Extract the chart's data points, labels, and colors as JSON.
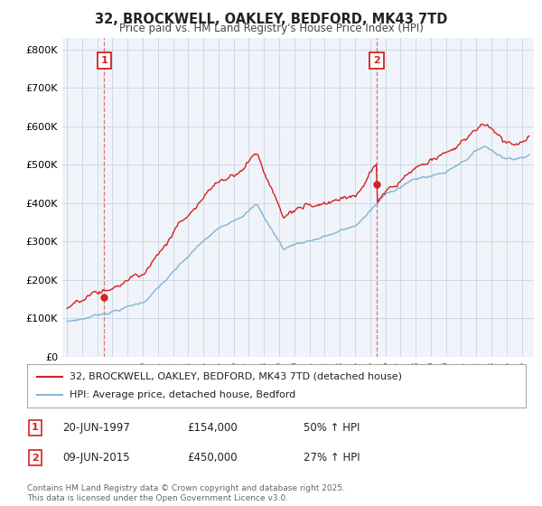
{
  "title": "32, BROCKWELL, OAKLEY, BEDFORD, MK43 7TD",
  "subtitle": "Price paid vs. HM Land Registry's House Price Index (HPI)",
  "legend_line1": "32, BROCKWELL, OAKLEY, BEDFORD, MK43 7TD (detached house)",
  "legend_line2": "HPI: Average price, detached house, Bedford",
  "annotation1_label": "1",
  "annotation1_date": "20-JUN-1997",
  "annotation1_price": "£154,000",
  "annotation1_hpi": "50% ↑ HPI",
  "annotation1_year": 1997.47,
  "annotation1_value": 154000,
  "annotation2_label": "2",
  "annotation2_date": "09-JUN-2015",
  "annotation2_price": "£450,000",
  "annotation2_hpi": "27% ↑ HPI",
  "annotation2_year": 2015.44,
  "annotation2_value": 450000,
  "red_color": "#d42020",
  "blue_color": "#88b8d8",
  "background_color": "#f0f4fa",
  "grid_color": "#c8d4e0",
  "ylim": [
    0,
    830000
  ],
  "yticks": [
    0,
    100000,
    200000,
    300000,
    400000,
    500000,
    600000,
    700000,
    800000
  ],
  "ytick_labels": [
    "£0",
    "£100K",
    "£200K",
    "£300K",
    "£400K",
    "£500K",
    "£600K",
    "£700K",
    "£800K"
  ],
  "footer": "Contains HM Land Registry data © Crown copyright and database right 2025.\nThis data is licensed under the Open Government Licence v3.0.",
  "xlim_left": 1994.7,
  "xlim_right": 2025.8
}
